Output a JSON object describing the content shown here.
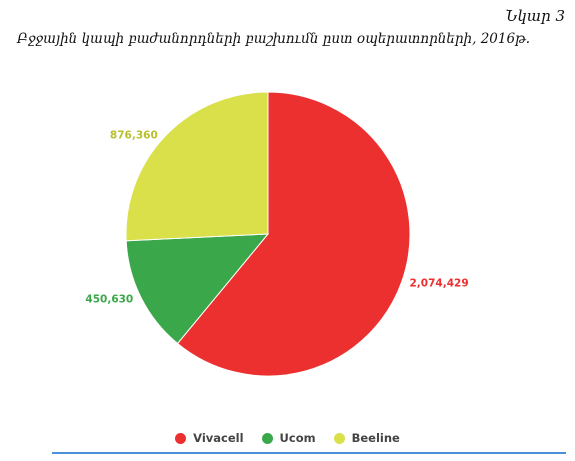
{
  "figure_label": "Նկար 3",
  "chart_data": {
    "type": "pie",
    "title": "Բջջային կապի բաժանորդների բաշխումն ըստ օպերատորների, 2016թ.",
    "categories": [
      "Vivacell",
      "Ucom",
      "Beeline"
    ],
    "values": [
      2074429,
      450630,
      876360
    ],
    "value_labels": [
      "2,074,429",
      "450,630",
      "876,360"
    ],
    "colors": [
      "#ec2f2f",
      "#3aa84a",
      "#d9e04a"
    ],
    "start_angle_deg": 0,
    "direction": "clockwise",
    "legend_position": "bottom"
  },
  "colors": {
    "accent_rule": "#4a90d9"
  }
}
